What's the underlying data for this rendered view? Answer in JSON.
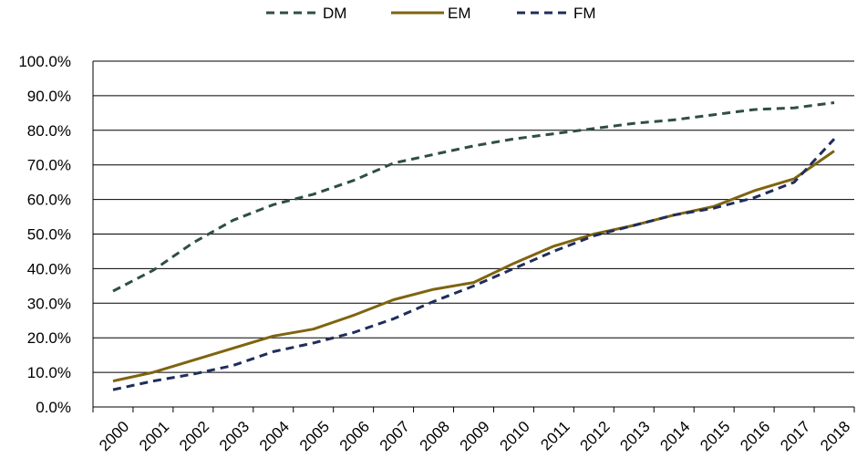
{
  "chart_data": {
    "type": "line",
    "title": "",
    "xlabel": "",
    "ylabel": "",
    "categories": [
      "2000",
      "2001",
      "2002",
      "2003",
      "2004",
      "2005",
      "2006",
      "2007",
      "2008",
      "2009",
      "2010",
      "2011",
      "2012",
      "2013",
      "2014",
      "2015",
      "2016",
      "2017",
      "2018"
    ],
    "ylim": [
      0,
      100
    ],
    "y_ticks": [
      "0.0%",
      "10.0%",
      "20.0%",
      "30.0%",
      "40.0%",
      "50.0%",
      "60.0%",
      "70.0%",
      "80.0%",
      "90.0%",
      "100.0%"
    ],
    "y_tick_values": [
      0,
      10,
      20,
      30,
      40,
      50,
      60,
      70,
      80,
      90,
      100
    ],
    "grid": "horizontal",
    "legend_position": "top-center",
    "series": [
      {
        "name": "DM",
        "color": "#2f4f3f",
        "dash": "dashed",
        "values": [
          33.5,
          39.5,
          47.5,
          54,
          58.5,
          61.5,
          65.5,
          70.5,
          73,
          75.5,
          77.5,
          79,
          80.5,
          82,
          83,
          84.5,
          86,
          86.5,
          88
        ]
      },
      {
        "name": "EM",
        "color": "#7f6410",
        "dash": "solid",
        "values": [
          7.5,
          10,
          13.5,
          17,
          20.5,
          22.5,
          26.5,
          31,
          34,
          36,
          41.5,
          46.5,
          50,
          52.5,
          55.5,
          58,
          62.5,
          66,
          74
        ]
      },
      {
        "name": "FM",
        "color": "#1f2d5c",
        "dash": "dashed",
        "values": [
          5,
          7.5,
          9.5,
          12,
          16,
          18.5,
          21.5,
          25.5,
          30.5,
          35,
          40,
          45,
          49.5,
          52.5,
          55.5,
          57.5,
          60.5,
          65,
          77.5
        ]
      }
    ]
  }
}
